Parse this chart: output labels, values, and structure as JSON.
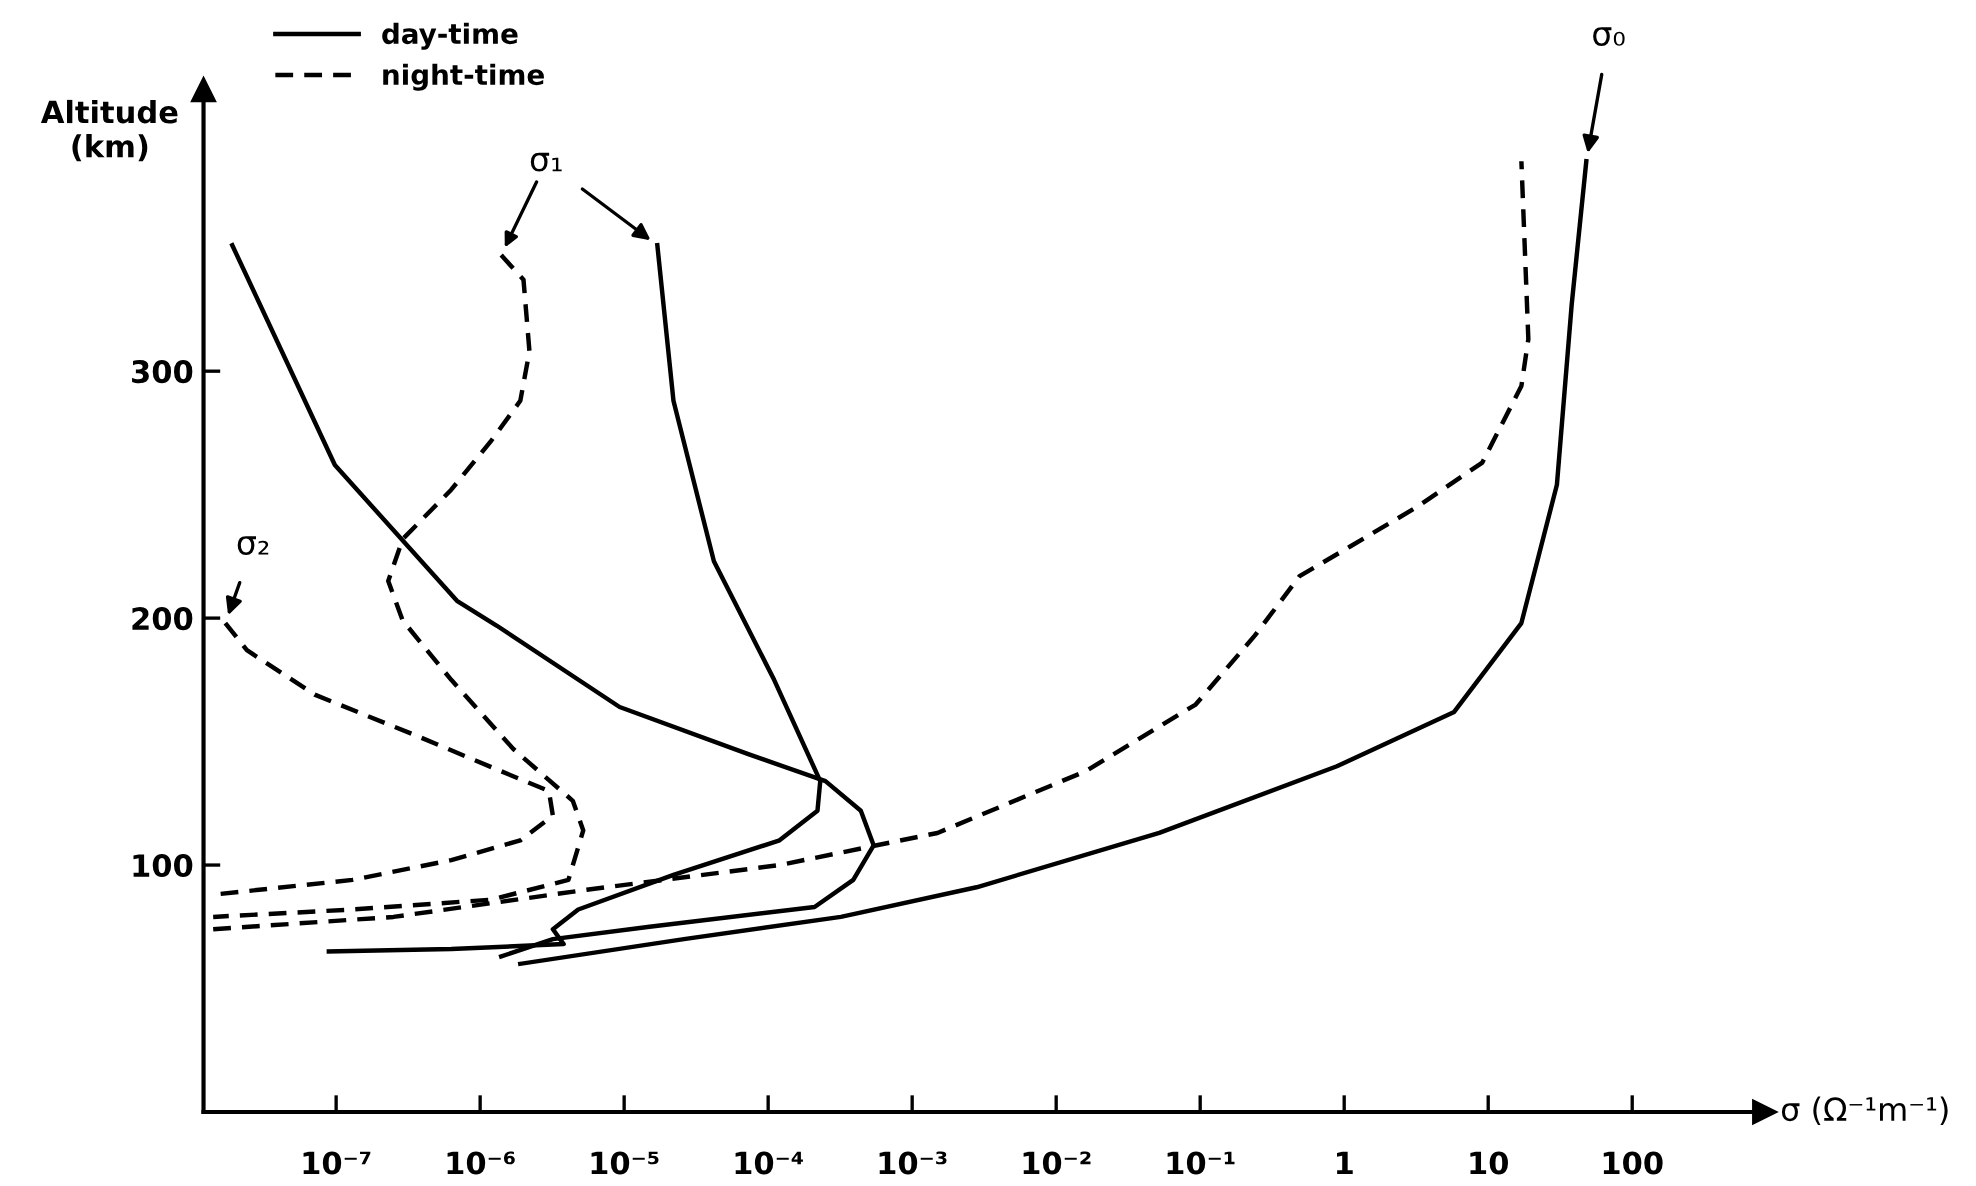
{
  "chart_data": {
    "type": "line",
    "xlabel": "σ (Ω⁻¹m⁻¹)",
    "ylabel": "Altitude\n(km)",
    "log": "x",
    "xlim": [
      1.2e-08,
      830
    ],
    "ylim": [
      0,
      414
    ],
    "yticks": [
      100,
      200,
      300
    ],
    "xticks": [
      {
        "value": 1e-07,
        "label": "10⁻⁷"
      },
      {
        "value": 1e-06,
        "label": "10⁻⁶"
      },
      {
        "value": 1e-05,
        "label": "10⁻⁵"
      },
      {
        "value": 0.0001,
        "label": "10⁻⁴"
      },
      {
        "value": 0.001,
        "label": "10⁻³"
      },
      {
        "value": 0.01,
        "label": "10⁻²"
      },
      {
        "value": 0.1,
        "label": "10⁻¹"
      },
      1,
      10,
      100
    ],
    "grid": false,
    "legend": "top left",
    "marker": "none",
    "series": [
      {
        "name": "day-time",
        "color": "#000000",
        "line_style": "solid",
        "x": [
          1.7e-05,
          2.2e-05,
          4.2e-05,
          0.00011,
          0.00023,
          0.00022,
          0.00012,
          2.2e-05,
          4.8e-06,
          3.2e-06,
          3.8e-06,
          6.3e-07,
          8.9e-08
        ],
        "values": [
          351,
          288,
          223,
          175,
          134,
          122,
          110,
          96,
          82,
          74,
          68,
          66,
          65
        ]
      },
      {
        "color": "#000000",
        "line_style": "solid",
        "x": [
          1.9e-08,
          9.8e-08,
          6.9e-07,
          1.3e-06,
          9.3e-06,
          7.2e-05,
          0.00025,
          0.00044,
          0.00054,
          0.00039,
          0.00021,
          1.5e-05,
          3.2e-06,
          1.4e-06
        ],
        "values": [
          351,
          262,
          207,
          197,
          164,
          145,
          134,
          122,
          108,
          94,
          83,
          75,
          70,
          63
        ]
      },
      {
        "color": "#000000",
        "line_style": "solid",
        "x": [
          1.9e-06,
          2.6e-05,
          0.00032,
          0.0028,
          0.052,
          0.89,
          5.8,
          17,
          30,
          38,
          48
        ],
        "values": [
          60,
          70,
          79,
          91,
          113,
          140,
          162,
          198,
          254,
          327,
          385
        ]
      },
      {
        "name": "night-time",
        "color": "#000000",
        "line_style": "dashed",
        "x": [
          1.4e-06,
          2e-06,
          2.2e-06,
          1.9e-06,
          1.2e-06,
          6.3e-07,
          2.9e-07,
          2.3e-07,
          2.9e-07,
          6.3e-07,
          1.7e-06,
          4.4e-06,
          5.2e-06,
          4.1e-06,
          1.2e-06,
          1.3e-07,
          1.4e-08
        ],
        "values": [
          347,
          337,
          308,
          288,
          272,
          252,
          232,
          215,
          199,
          175,
          147,
          126,
          114,
          94,
          86,
          82,
          79
        ]
      },
      {
        "color": "#000000",
        "line_style": "dashed",
        "x": [
          1.7e-08,
          2.4e-08,
          7.1e-08,
          3.4e-07,
          1.4e-06,
          3e-06,
          3.2e-06,
          1.9e-06,
          6.3e-07,
          1.3e-07,
          1.4e-08
        ],
        "values": [
          198,
          187,
          169,
          153,
          138,
          130,
          120,
          110,
          102,
          94,
          88
        ]
      },
      {
        "color": "#000000",
        "line_style": "dashed",
        "x": [
          1.4e-08,
          2.5e-07,
          5.5e-06,
          0.00012,
          0.0015,
          0.016,
          0.093,
          0.24,
          0.49,
          1.1,
          3.2,
          9.1,
          17,
          19,
          17
        ],
        "values": [
          74,
          79,
          90,
          100,
          113,
          138,
          165,
          193,
          217,
          229,
          245,
          263,
          294,
          313,
          385
        ]
      }
    ],
    "annotations": [
      {
        "text": "σ₁",
        "x": 1.7e-05,
        "y": 351
      },
      {
        "text": "σ₂",
        "x": 1.7e-08,
        "y": 198
      },
      {
        "text": "σ₀",
        "x": 48,
        "y": 385
      }
    ]
  }
}
